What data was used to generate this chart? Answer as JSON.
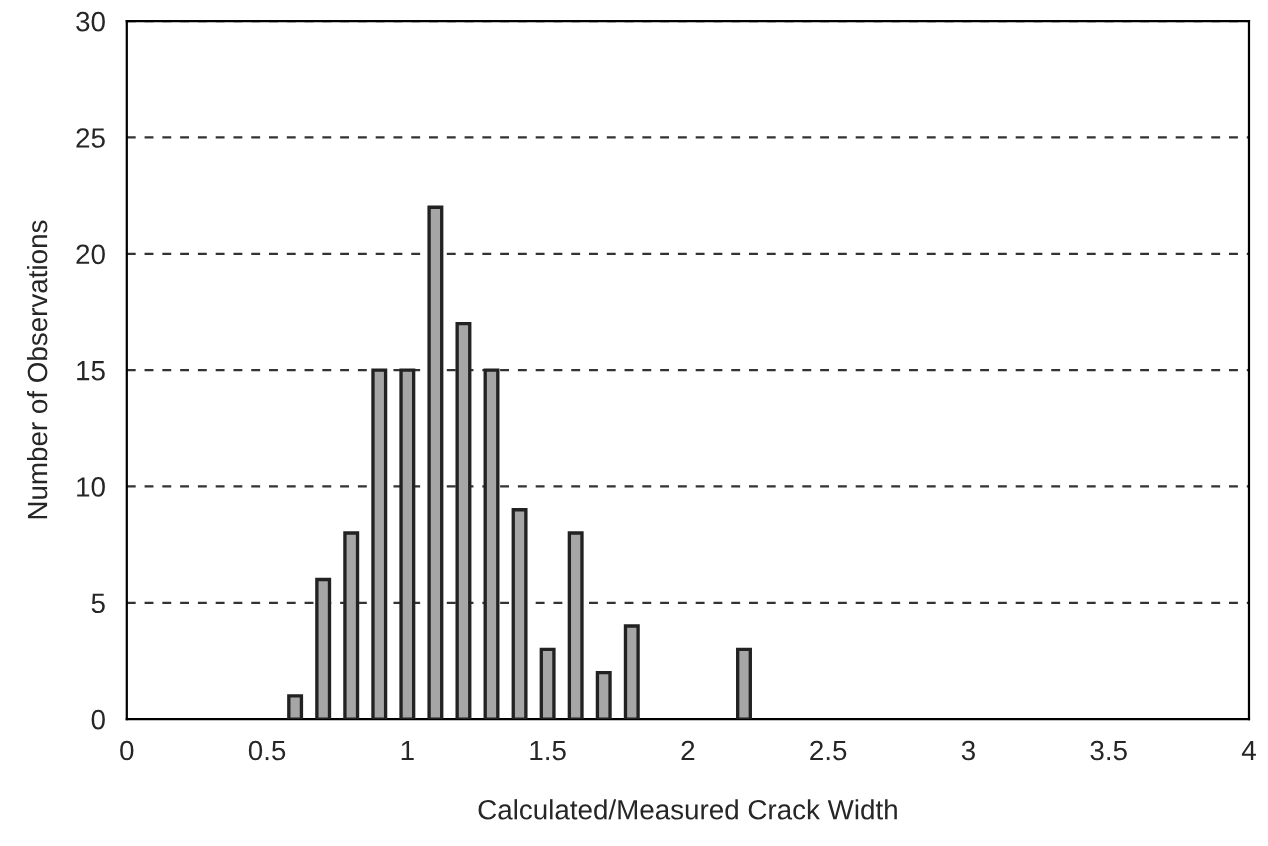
{
  "chart_data": {
    "type": "bar",
    "xlabel": "Calculated/Measured Crack Width",
    "ylabel": "Number of Observations",
    "x": [
      0.6,
      0.7,
      0.8,
      0.9,
      1.0,
      1.1,
      1.2,
      1.3,
      1.4,
      1.5,
      1.6,
      1.7,
      1.8,
      2.2
    ],
    "values": [
      1,
      6,
      8,
      15,
      15,
      22,
      17,
      15,
      9,
      3,
      8,
      2,
      4,
      3
    ],
    "color": "#a6a6a6",
    "xlim": [
      0,
      4
    ],
    "xticks": [
      0,
      0.5,
      1,
      1.5,
      2,
      2.5,
      3,
      3.5,
      4
    ],
    "ylim": [
      0,
      30
    ],
    "yticks": [
      0,
      5,
      10,
      15,
      20,
      25,
      30
    ],
    "grid": "y"
  }
}
